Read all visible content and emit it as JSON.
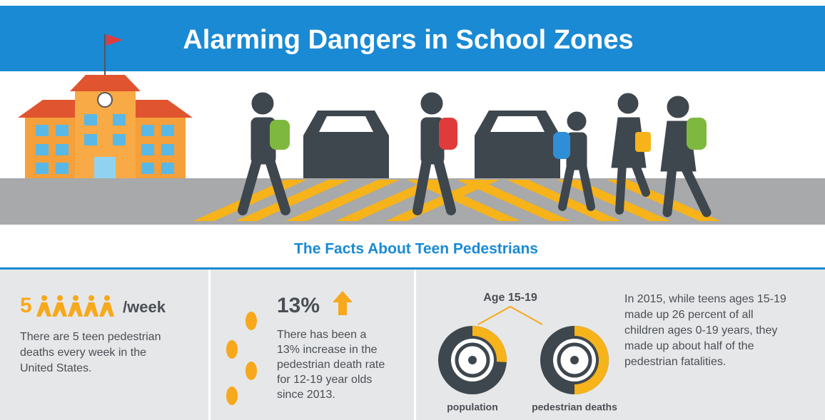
{
  "header": {
    "title": "Alarming Dangers in School Zones"
  },
  "section_title": "The Facts About Teen Pedestrians",
  "panels": [
    {
      "number": "5",
      "unit": "/week",
      "text": [
        "There are 5 teen pedestrian",
        "deaths every week in the",
        "United States."
      ]
    },
    {
      "number": "13%",
      "text": [
        "There has been a",
        "13% increase in the",
        "pedestrian death rate",
        "for 12-19 year olds",
        "since 2013."
      ]
    },
    {
      "label": "Age 15-19",
      "pies": [
        {
          "name": "population",
          "value": 26
        },
        {
          "name": "pedestrian deaths",
          "value": 50
        }
      ],
      "text": [
        "In 2015, while teens ages 15-19",
        "made up 26 percent of all",
        "children ages 0-19 years, they",
        "made up about half of the",
        "pedestrian fatalities."
      ]
    }
  ]
}
